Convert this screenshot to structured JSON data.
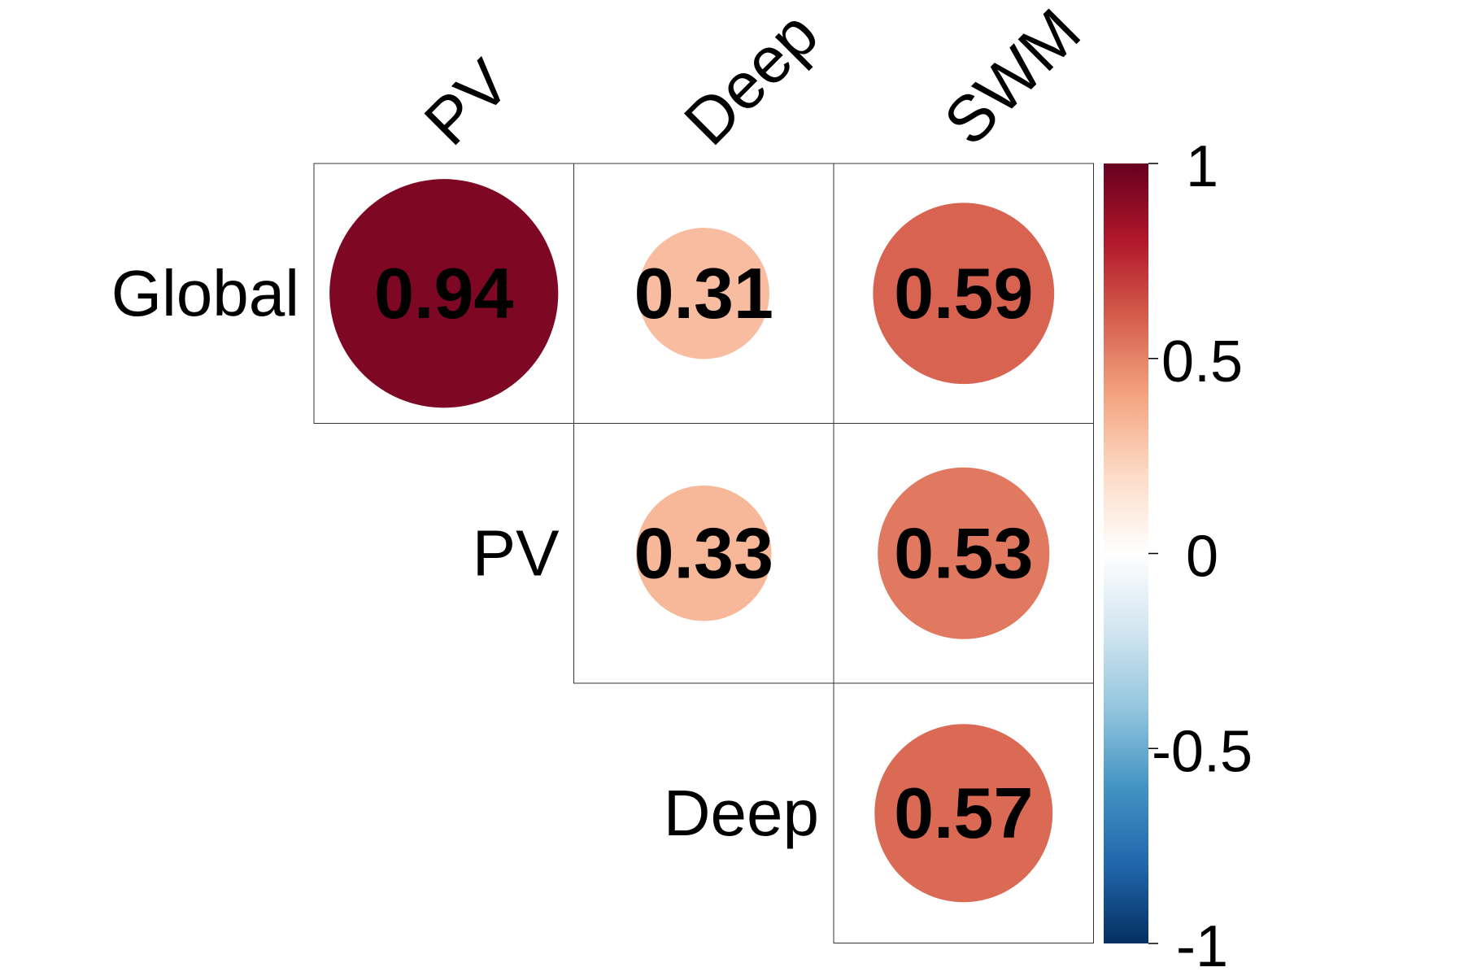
{
  "chart_data": {
    "type": "heatmap",
    "title": "",
    "columns": [
      "PV",
      "Deep",
      "SWM"
    ],
    "rows": [
      "Global",
      "PV",
      "Deep"
    ],
    "cells": [
      {
        "row": "Global",
        "col": "PV",
        "value": 0.94,
        "label": "0.94"
      },
      {
        "row": "Global",
        "col": "Deep",
        "value": 0.31,
        "label": "0.31"
      },
      {
        "row": "Global",
        "col": "SWM",
        "value": 0.59,
        "label": "0.59"
      },
      {
        "row": "PV",
        "col": "Deep",
        "value": 0.33,
        "label": "0.33"
      },
      {
        "row": "PV",
        "col": "SWM",
        "value": 0.53,
        "label": "0.53"
      },
      {
        "row": "Deep",
        "col": "SWM",
        "value": 0.57,
        "label": "0.57"
      }
    ],
    "colorbar": {
      "range": [
        -1,
        1
      ],
      "ticks": [
        {
          "value": 1,
          "label": "1"
        },
        {
          "value": 0.5,
          "label": "0.5"
        },
        {
          "value": 0,
          "label": "0"
        },
        {
          "value": -0.5,
          "label": "-0.5"
        },
        {
          "value": -1,
          "label": "-1"
        }
      ],
      "colors": [
        "#053061",
        "#2166ac",
        "#4393c3",
        "#92c5de",
        "#d1e5f0",
        "#ffffff",
        "#fddbc7",
        "#f4a582",
        "#d6604d",
        "#b2182b",
        "#67001f"
      ]
    },
    "encoding": "circle area proportional to |value|, fill from colorbar"
  }
}
